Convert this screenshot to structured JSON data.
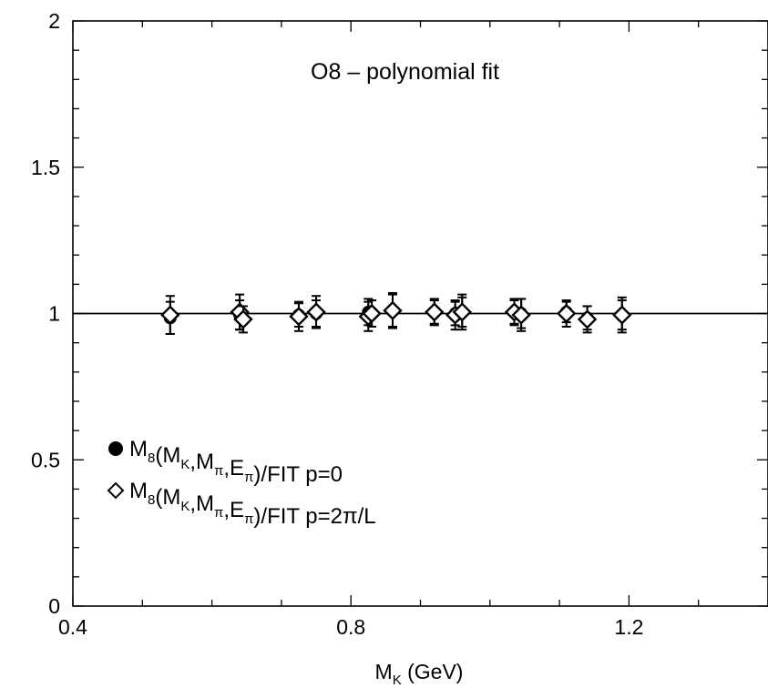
{
  "chart_data": {
    "type": "scatter",
    "title": "O8 – polynomial fit",
    "xlabel": {
      "main": "M",
      "sub": "K",
      "rest": " (GeV)"
    },
    "ylabel": "",
    "xlim": [
      0.4,
      1.4
    ],
    "ylim": [
      0,
      2
    ],
    "x_tick_labels": [
      "0.4",
      "0.8",
      "1.2"
    ],
    "y_tick_labels": [
      "0",
      "0.5",
      "1",
      "1.5",
      "2"
    ],
    "reference_line_y": 1,
    "grid": false,
    "legend_position": "lower-left",
    "series": [
      {
        "name": "M8(MK,Mπ,Eπ)/FIT  p=0",
        "marker": "filled-circle",
        "legend_parts": [
          {
            "t": "M",
            "s": "n"
          },
          {
            "t": "8",
            "s": "sub"
          },
          {
            "t": "(M",
            "s": "n"
          },
          {
            "t": "K",
            "s": "sub"
          },
          {
            "t": ",M",
            "s": "n"
          },
          {
            "t": "π",
            "s": "sub"
          },
          {
            "t": ",E",
            "s": "n"
          },
          {
            "t": "π",
            "s": "sub"
          },
          {
            "t": ")/FIT  p=0",
            "s": "n"
          }
        ],
        "points": [
          {
            "x": 0.54,
            "y": 0.985,
            "err": 0.055
          },
          {
            "x": 0.64,
            "y": 0.995,
            "err": 0.05
          },
          {
            "x": 0.725,
            "y": 0.995,
            "err": 0.04
          },
          {
            "x": 0.75,
            "y": 1.0,
            "err": 0.045
          },
          {
            "x": 0.825,
            "y": 1.005,
            "err": 0.045
          },
          {
            "x": 0.86,
            "y": 1.01,
            "err": 0.055
          },
          {
            "x": 0.92,
            "y": 1.005,
            "err": 0.04
          },
          {
            "x": 0.95,
            "y": 1.0,
            "err": 0.04
          },
          {
            "x": 0.96,
            "y": 1.005,
            "err": 0.05
          },
          {
            "x": 1.035,
            "y": 1.005,
            "err": 0.04
          },
          {
            "x": 1.045,
            "y": 1.0,
            "err": 0.05
          },
          {
            "x": 1.11,
            "y": 1.005,
            "err": 0.035
          },
          {
            "x": 1.14,
            "y": 0.985,
            "err": 0.04
          },
          {
            "x": 1.19,
            "y": 0.995,
            "err": 0.05
          }
        ]
      },
      {
        "name": "M8(MK,Mπ,Eπ)/FIT  p=2π/L",
        "marker": "open-diamond",
        "legend_parts": [
          {
            "t": "M",
            "s": "n"
          },
          {
            "t": "8",
            "s": "sub"
          },
          {
            "t": "(M",
            "s": "n"
          },
          {
            "t": "K",
            "s": "sub"
          },
          {
            "t": ",M",
            "s": "n"
          },
          {
            "t": "π",
            "s": "sub"
          },
          {
            "t": ",E",
            "s": "n"
          },
          {
            "t": "π",
            "s": "sub"
          },
          {
            "t": ")/FIT  p=2π/L",
            "s": "n"
          }
        ],
        "points": [
          {
            "x": 0.54,
            "y": 0.995,
            "err": 0.065
          },
          {
            "x": 0.64,
            "y": 1.005,
            "err": 0.06
          },
          {
            "x": 0.645,
            "y": 0.98,
            "err": 0.045
          },
          {
            "x": 0.725,
            "y": 0.99,
            "err": 0.05
          },
          {
            "x": 0.75,
            "y": 1.005,
            "err": 0.055
          },
          {
            "x": 0.825,
            "y": 0.99,
            "err": 0.05
          },
          {
            "x": 0.83,
            "y": 1.0,
            "err": 0.045
          },
          {
            "x": 0.86,
            "y": 1.01,
            "err": 0.06
          },
          {
            "x": 0.92,
            "y": 1.005,
            "err": 0.045
          },
          {
            "x": 0.95,
            "y": 0.995,
            "err": 0.05
          },
          {
            "x": 0.96,
            "y": 1.005,
            "err": 0.06
          },
          {
            "x": 1.035,
            "y": 1.005,
            "err": 0.045
          },
          {
            "x": 1.045,
            "y": 0.995,
            "err": 0.055
          },
          {
            "x": 1.11,
            "y": 1.0,
            "err": 0.045
          },
          {
            "x": 1.14,
            "y": 0.98,
            "err": 0.045
          },
          {
            "x": 1.19,
            "y": 0.995,
            "err": 0.06
          }
        ]
      }
    ]
  }
}
